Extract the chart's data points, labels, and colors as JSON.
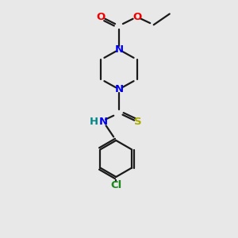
{
  "bg_color": "#e8e8e8",
  "bond_color": "#1a1a1a",
  "N_color": "#0000ee",
  "O_color": "#ee0000",
  "S_color": "#aaaa00",
  "Cl_color": "#1a8a1a",
  "H_color": "#008888",
  "bond_width": 1.6,
  "font_size": 9.5,
  "xlim": [
    0,
    10
  ],
  "ylim": [
    0,
    12
  ]
}
